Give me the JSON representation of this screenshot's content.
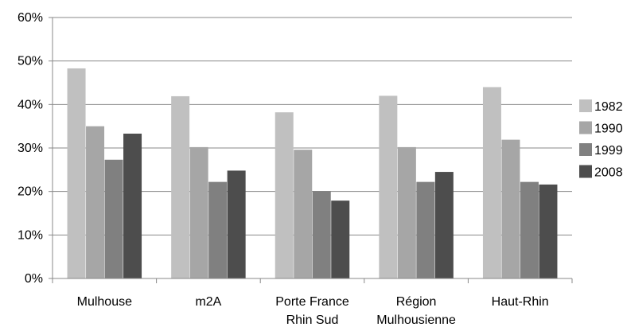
{
  "chart_data": {
    "type": "bar",
    "title": "",
    "xlabel": "",
    "ylabel": "",
    "ylim": [
      0,
      60
    ],
    "y_ticks": [
      "0%",
      "10%",
      "20%",
      "30%",
      "40%",
      "50%",
      "60%"
    ],
    "y_tick_values": [
      0,
      10,
      20,
      30,
      40,
      50,
      60
    ],
    "grid": true,
    "legend_position": "right",
    "categories": [
      [
        "Mulhouse"
      ],
      [
        "m2A"
      ],
      [
        "Porte France",
        "Rhin Sud"
      ],
      [
        "Région",
        "Mulhousienne"
      ],
      [
        "Haut-Rhin"
      ]
    ],
    "series": [
      {
        "name": "1982",
        "color": "#c0c0c0",
        "values": [
          48.3,
          41.9,
          38.2,
          42.0,
          44.0
        ]
      },
      {
        "name": "1990",
        "color": "#a6a6a6",
        "values": [
          35.0,
          30.2,
          29.6,
          30.2,
          31.9
        ]
      },
      {
        "name": "1999",
        "color": "#808080",
        "values": [
          27.3,
          22.2,
          20.1,
          22.2,
          22.2
        ]
      },
      {
        "name": "2008",
        "color": "#4d4d4d",
        "values": [
          33.3,
          24.8,
          17.9,
          24.5,
          21.6
        ]
      }
    ]
  }
}
